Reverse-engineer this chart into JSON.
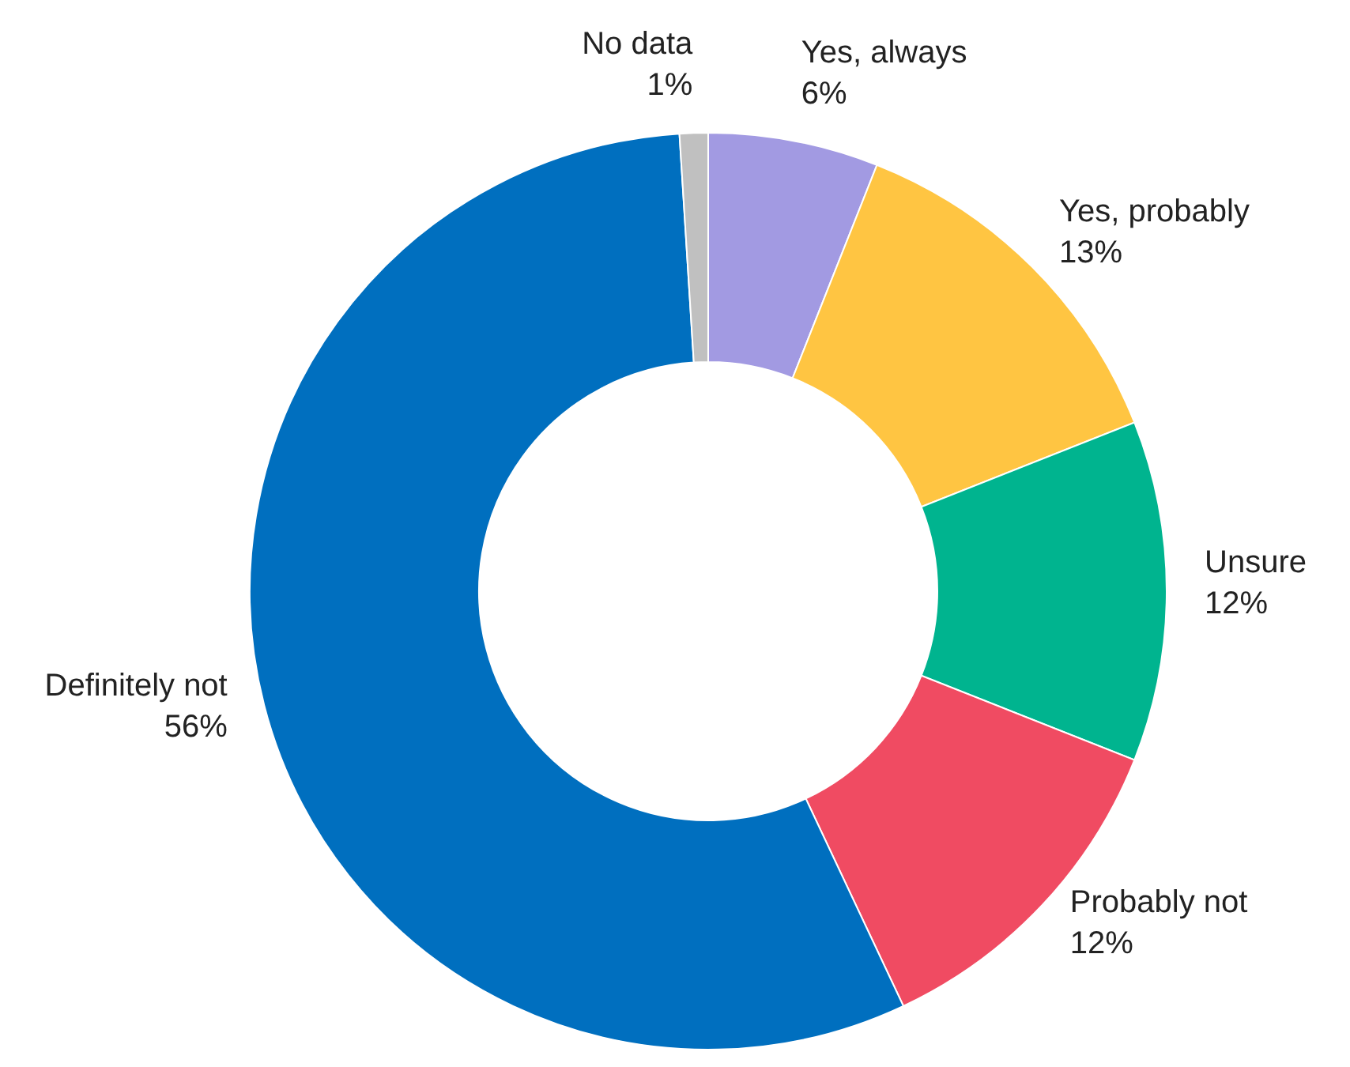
{
  "chart_data": {
    "type": "donut",
    "categories": [
      "Yes, always",
      "Yes, probably",
      "Unsure",
      "Probably not",
      "Definitely not",
      "No data"
    ],
    "values": [
      6,
      13,
      12,
      12,
      56,
      1
    ],
    "value_labels": [
      "6%",
      "13%",
      "12%",
      "12%",
      "56%",
      "1%"
    ],
    "colors": [
      "#a29ae2",
      "#ffc542",
      "#00b48f",
      "#f04b62",
      "#006fbf",
      "#c0c0c0"
    ]
  }
}
